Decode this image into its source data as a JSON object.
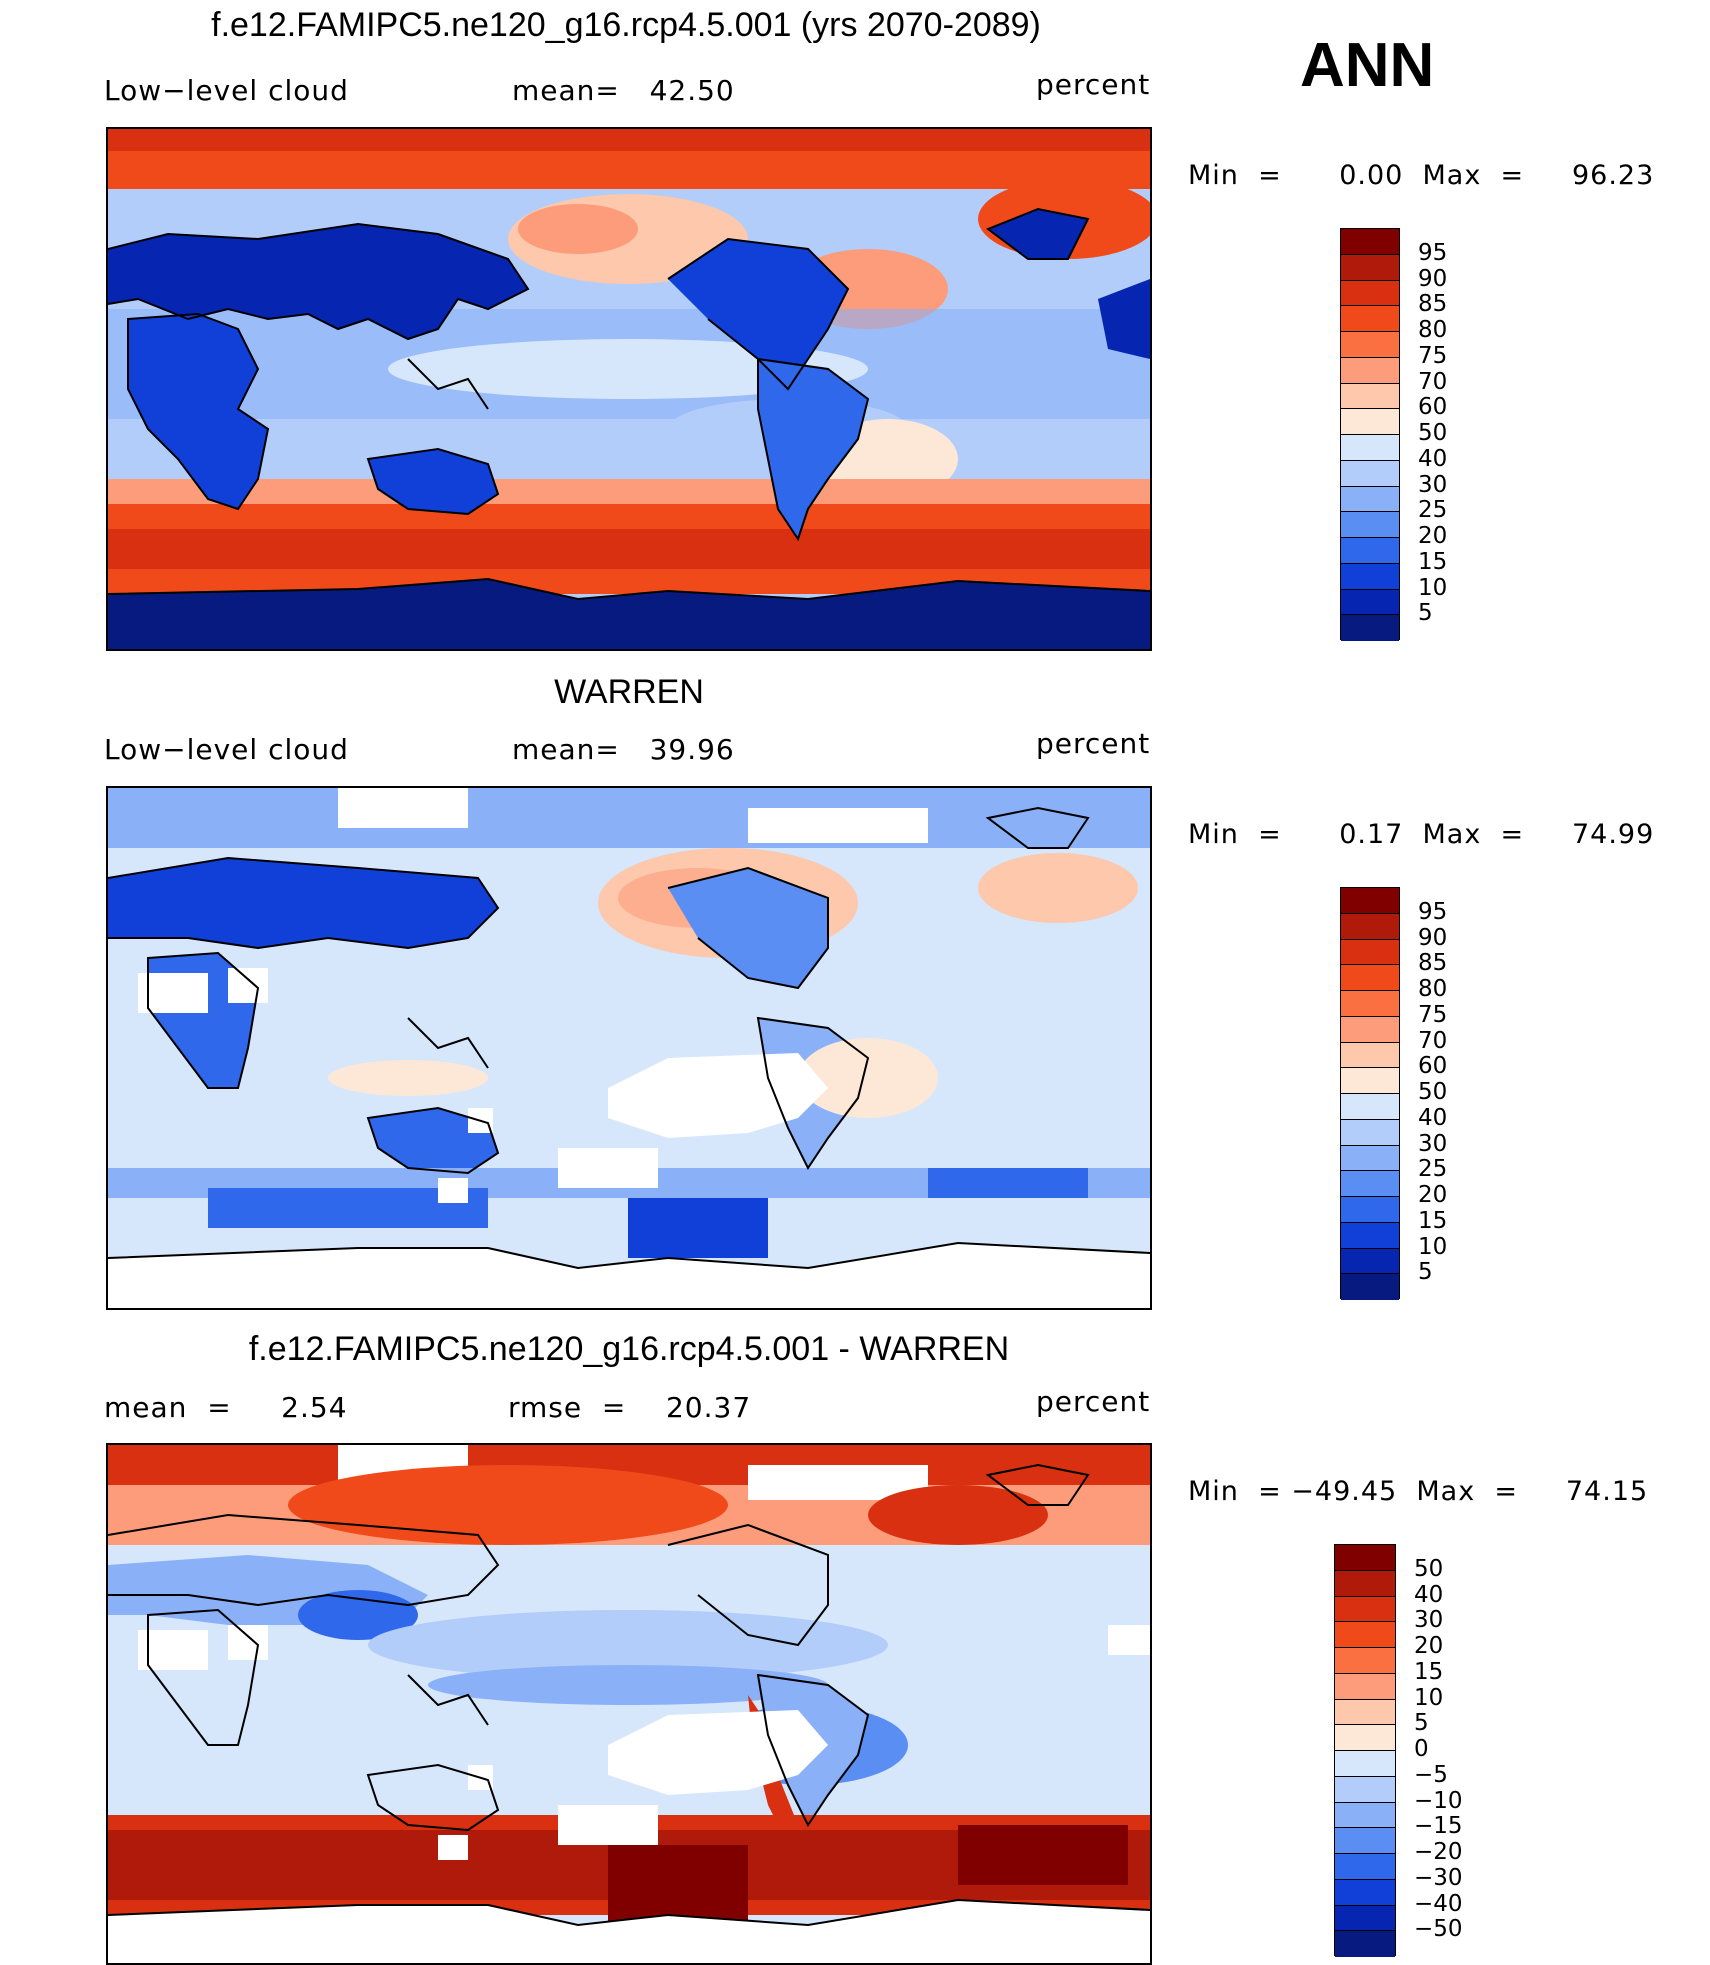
{
  "season_label": "ANN",
  "panels": [
    {
      "title": "f.e12.FAMIPC5.ne120_g16.rcp4.5.001 (yrs 2070-2089)",
      "left_label": "Low−level cloud",
      "center_label": "mean=   42.50",
      "units": "percent",
      "minmax": "Min  =      0.00  Max  =     96.23"
    },
    {
      "title": "WARREN",
      "left_label": "Low−level cloud",
      "center_label": "mean=   39.96",
      "units": "percent",
      "minmax": "Min  =      0.17  Max  =     74.99"
    },
    {
      "title": "f.e12.FAMIPC5.ne120_g16.rcp4.5.001 - WARREN",
      "left_label": "mean  =     2.54",
      "center_label": "rmse  =    20.37",
      "units": "percent",
      "minmax": "Min  = −49.45  Max  =     74.15"
    }
  ],
  "colorbars": {
    "field": {
      "levels": [
        "95",
        "90",
        "85",
        "80",
        "75",
        "70",
        "60",
        "50",
        "40",
        "30",
        "25",
        "20",
        "15",
        "10",
        "5"
      ],
      "colors": [
        "#800000",
        "#b01a0a",
        "#d83010",
        "#f04a1a",
        "#fa7040",
        "#fc9c7a",
        "#fdc8ac",
        "#fde8d8",
        "#d6e6fb",
        "#b2cdfa",
        "#8ab0f7",
        "#5b8ef2",
        "#2f68ea",
        "#1140d8",
        "#0625b0",
        "#061a80"
      ]
    },
    "diff": {
      "levels": [
        "50",
        "40",
        "30",
        "20",
        "15",
        "10",
        "5",
        "0",
        "−5",
        "−10",
        "−15",
        "−20",
        "−30",
        "−40",
        "−50"
      ],
      "colors": [
        "#800000",
        "#b01a0a",
        "#d83010",
        "#f04a1a",
        "#fa7040",
        "#fc9c7a",
        "#fdc8ac",
        "#fde8d8",
        "#d6e6fb",
        "#b2cdfa",
        "#8ab0f7",
        "#5b8ef2",
        "#2f68ea",
        "#1140d8",
        "#0625b0",
        "#061a80"
      ]
    }
  }
}
